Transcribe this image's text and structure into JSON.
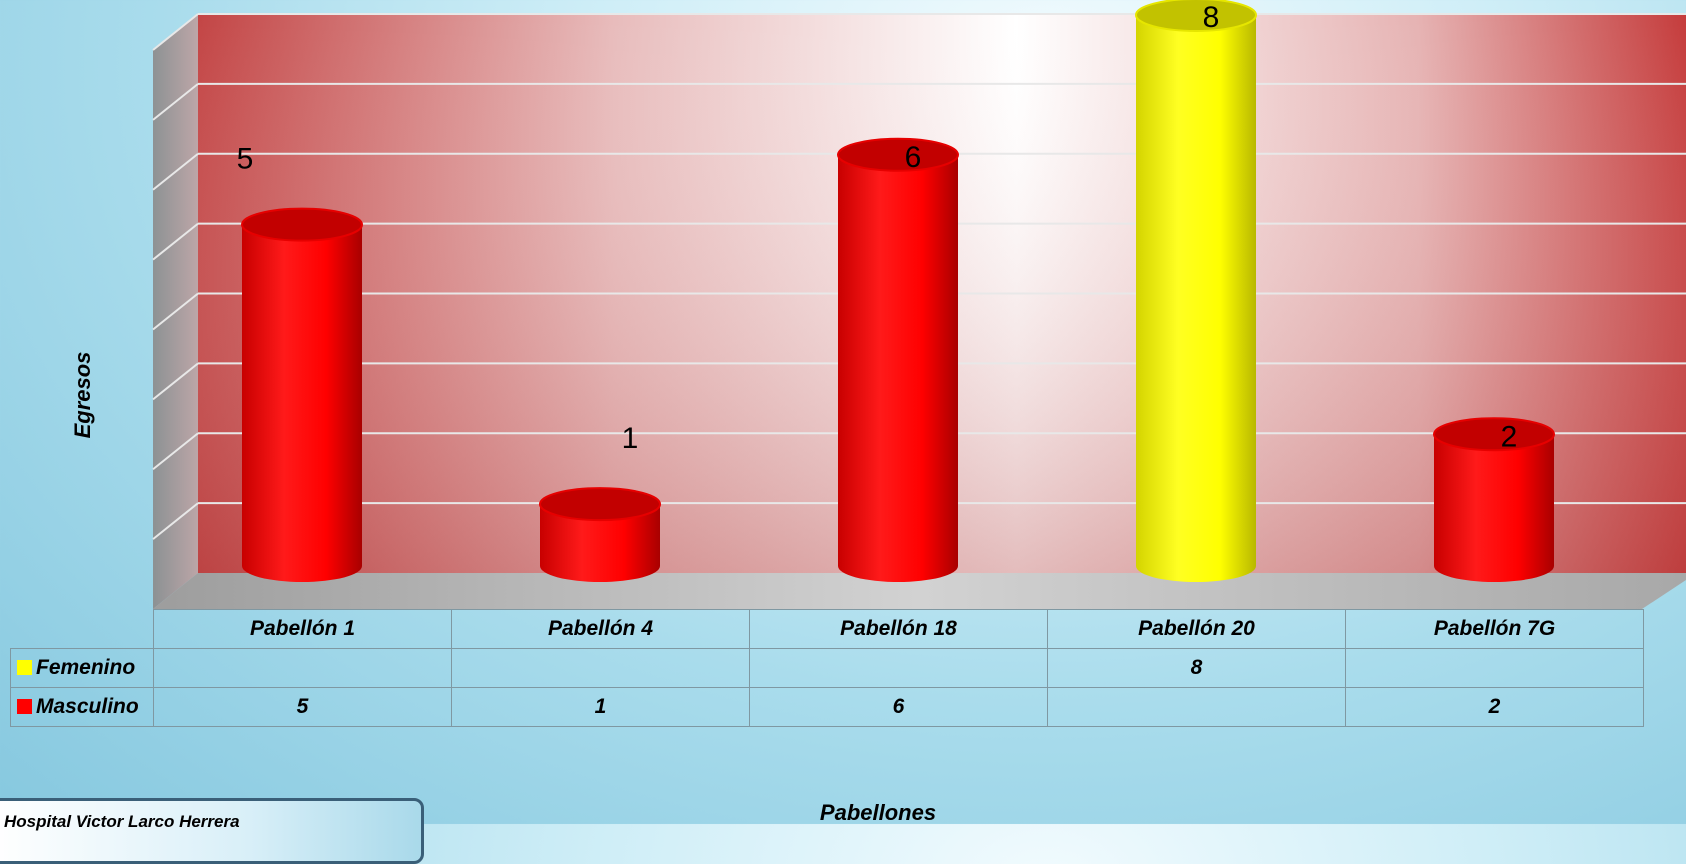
{
  "chart_data": {
    "type": "bar",
    "style": "3d-cylinder",
    "categories": [
      "Pabellón 1",
      "Pabellón 4",
      "Pabellón 18",
      "Pabellón 20",
      "Pabellón 7G"
    ],
    "series": [
      {
        "name": "Femenino",
        "color": "#ffff00",
        "values": [
          null,
          null,
          null,
          8,
          null
        ]
      },
      {
        "name": "Masculino",
        "color": "#ff0000",
        "values": [
          5,
          1,
          6,
          null,
          2
        ]
      }
    ],
    "bar_labels": [
      "5",
      "1",
      "6",
      "8",
      "2"
    ],
    "ylabel": "Egresos",
    "xlabel": "Pabellones",
    "ylim": [
      0,
      8
    ],
    "grid": true,
    "legend": "data-table",
    "table_rows": [
      {
        "name": "Femenino",
        "color": "#ffff00",
        "cells": [
          "",
          "",
          "",
          "8",
          ""
        ]
      },
      {
        "name": "Masculino",
        "color": "#ff0000",
        "cells": [
          "5",
          "1",
          "6",
          "",
          "2"
        ]
      }
    ]
  },
  "source": "Hospital Victor Larco Herrera",
  "colors": {
    "wall": "#cc3b3b",
    "floor": "#bdbdbd"
  }
}
